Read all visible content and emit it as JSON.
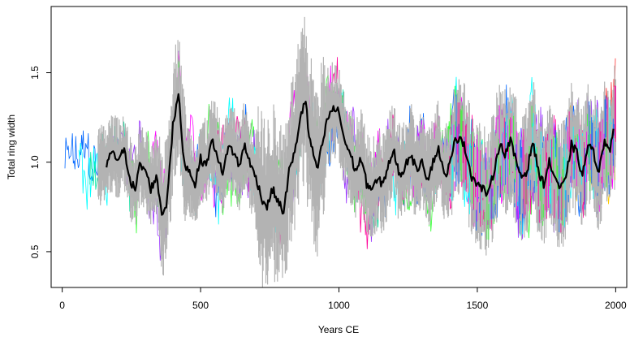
{
  "chart_data": {
    "type": "line",
    "title": "",
    "xlabel": "Years CE",
    "ylabel": "Total ring width",
    "xlim": [
      -40,
      2040
    ],
    "ylim": [
      0.3,
      1.87
    ],
    "x_ticks": [
      0,
      500,
      1000,
      1500,
      2000
    ],
    "y_ticks": [
      0.5,
      1.0,
      1.5
    ],
    "x_tick_labels": [
      "0",
      "500",
      "1000",
      "1500",
      "2000"
    ],
    "y_tick_labels": [
      "0.5",
      "1.0",
      "1.5"
    ],
    "grid": false,
    "legend": "none",
    "series_colors": {
      "individual_series": [
        "#00ffff",
        "#ff00ff",
        "#0066ff",
        "#33ff33",
        "#ff0099",
        "#00e5a0",
        "#9933ff",
        "#ffcc00",
        "#ff3333"
      ],
      "envelope": "#b3b3b3",
      "mean_chronology": "#000000"
    },
    "series": [
      {
        "role": "mean chronology",
        "color": "#000000",
        "x": [
          160,
          175,
          200,
          225,
          250,
          265,
          280,
          300,
          320,
          340,
          360,
          375,
          400,
          420,
          440,
          460,
          480,
          500,
          520,
          540,
          560,
          580,
          600,
          620,
          640,
          660,
          680,
          700,
          720,
          740,
          760,
          780,
          800,
          820,
          840,
          860,
          870,
          880,
          890,
          900,
          920,
          940,
          960,
          980,
          1000,
          1020,
          1040,
          1060,
          1080,
          1100,
          1120,
          1140,
          1160,
          1180,
          1200,
          1220,
          1240,
          1260,
          1280,
          1300,
          1320,
          1340,
          1360,
          1380,
          1400,
          1420,
          1440,
          1460,
          1480,
          1500,
          1520,
          1540,
          1560,
          1580,
          1600,
          1620,
          1640,
          1660,
          1680,
          1700,
          1720,
          1740,
          1760,
          1780,
          1800,
          1820,
          1840,
          1860,
          1880,
          1900,
          1920,
          1940,
          1960,
          1980,
          1995
        ],
        "values": [
          0.98,
          1.05,
          1.02,
          1.06,
          0.88,
          0.85,
          0.98,
          0.96,
          0.85,
          0.92,
          0.72,
          0.74,
          1.2,
          1.38,
          1.0,
          0.95,
          0.88,
          1.02,
          0.98,
          1.12,
          1.05,
          0.92,
          1.1,
          1.05,
          0.98,
          1.1,
          0.98,
          0.92,
          0.8,
          0.75,
          0.85,
          0.78,
          0.72,
          0.95,
          1.05,
          1.25,
          1.3,
          1.35,
          1.15,
          1.1,
          0.95,
          1.1,
          1.25,
          1.3,
          1.28,
          1.12,
          1.05,
          0.95,
          1.02,
          0.88,
          0.85,
          0.9,
          0.88,
          1.0,
          1.05,
          0.92,
          0.98,
          1.05,
          0.95,
          1.02,
          0.9,
          1.0,
          1.08,
          0.92,
          0.98,
          1.12,
          1.15,
          1.05,
          0.92,
          0.88,
          0.85,
          0.82,
          0.95,
          1.1,
          1.05,
          1.12,
          1.0,
          0.92,
          0.95,
          1.12,
          0.95,
          0.88,
          1.0,
          0.92,
          0.85,
          0.9,
          1.1,
          1.05,
          0.92,
          1.1,
          1.05,
          0.95,
          1.12,
          1.08,
          1.2
        ]
      }
    ]
  }
}
